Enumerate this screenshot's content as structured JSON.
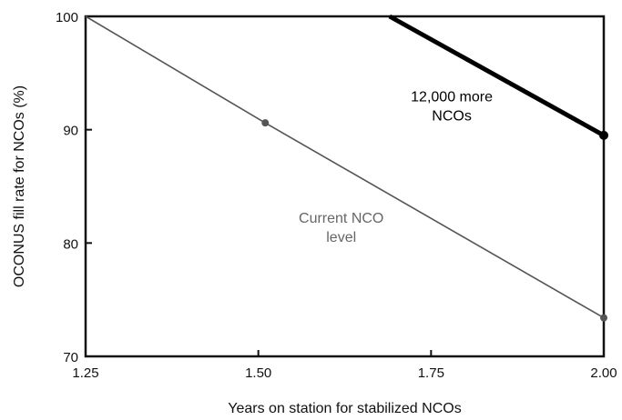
{
  "chart_data": {
    "type": "line",
    "xlabel": "Years on station for stabilized NCOs",
    "ylabel": "OCONUS fill rate for NCOs (%)",
    "xlim": [
      1.25,
      2.0
    ],
    "ylim": [
      70,
      100
    ],
    "x_ticks": [
      1.25,
      1.5,
      1.75,
      2.0
    ],
    "x_tick_labels": [
      "1.25",
      "1.50",
      "1.75",
      "2.00"
    ],
    "y_ticks": [
      70,
      80,
      90,
      100
    ],
    "y_tick_labels": [
      "70",
      "80",
      "90",
      "100"
    ],
    "grid": false,
    "series": [
      {
        "name": "Current NCO level",
        "color": "#555555",
        "points": [
          {
            "x": 1.25,
            "y": 100,
            "marker": false
          },
          {
            "x": 1.51,
            "y": 90.6,
            "marker": true
          },
          {
            "x": 2.0,
            "y": 73.4,
            "marker": true
          }
        ]
      },
      {
        "name": "12,000 more NCOs",
        "color": "#000000",
        "points": [
          {
            "x": 1.69,
            "y": 100,
            "marker": false
          },
          {
            "x": 2.0,
            "y": 89.5,
            "marker": true
          }
        ]
      }
    ],
    "annotations": [
      {
        "series": 0,
        "lines": [
          "Current NCO",
          "level"
        ],
        "x": 1.62,
        "y": 81.8,
        "color": "#666666"
      },
      {
        "series": 1,
        "lines": [
          "12,000 more",
          "NCOs"
        ],
        "x": 1.78,
        "y": 92.5,
        "color": "#000000"
      }
    ]
  }
}
